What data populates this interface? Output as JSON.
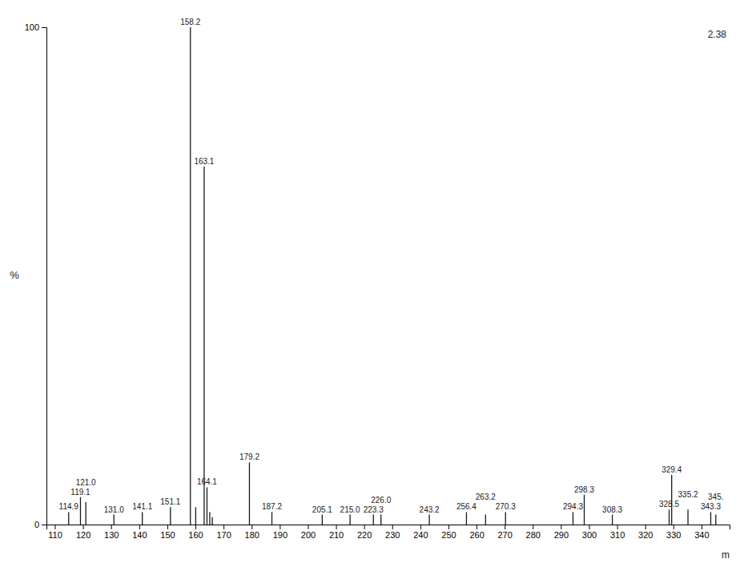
{
  "chart_data": {
    "type": "stem",
    "x": [
      114.9,
      119.1,
      121.0,
      131.0,
      141.1,
      151.1,
      158.2,
      160.1,
      163.1,
      164.1,
      165.1,
      166.0,
      179.2,
      187.2,
      205.1,
      215.0,
      223.3,
      226.0,
      243.2,
      256.4,
      263.2,
      270.3,
      294.3,
      298.3,
      308.3,
      328.5,
      329.4,
      335.2,
      343.3,
      345.1
    ],
    "values": [
      2.5,
      5.5,
      4.5,
      2.0,
      2.5,
      3.5,
      100.0,
      3.5,
      72.0,
      7.5,
      2.5,
      1.5,
      12.5,
      2.5,
      2.0,
      2.0,
      2.0,
      2.0,
      2.0,
      2.5,
      2.0,
      2.5,
      2.5,
      6.0,
      2.0,
      3.0,
      10.0,
      3.0,
      2.5,
      2.0
    ],
    "point_labels": [
      "114.9",
      "119.1",
      "121.0",
      "131.0",
      "141.1",
      "151.1",
      "158.2",
      null,
      "163.1",
      "164.1",
      null,
      null,
      "179.2",
      "187.2",
      "205.1",
      "215.0",
      "223.3",
      "226.0",
      "243.2",
      "256.4",
      "263.2",
      "270.3",
      "294.3",
      "298.3",
      "308.3",
      "328.5",
      "329.4",
      "335.2",
      "343.3",
      "345."
    ],
    "xlim": [
      107,
      350
    ],
    "ylim": [
      0,
      100
    ],
    "xticks": [
      110,
      120,
      130,
      140,
      150,
      160,
      170,
      180,
      190,
      200,
      210,
      220,
      230,
      240,
      250,
      260,
      270,
      280,
      290,
      300,
      310,
      320,
      330,
      340
    ],
    "yticks": [
      0,
      100
    ],
    "xlabel": "m",
    "ylabel": "%",
    "annotations": [
      "2.38"
    ],
    "color": "#1a1a1a",
    "grid": false
  }
}
